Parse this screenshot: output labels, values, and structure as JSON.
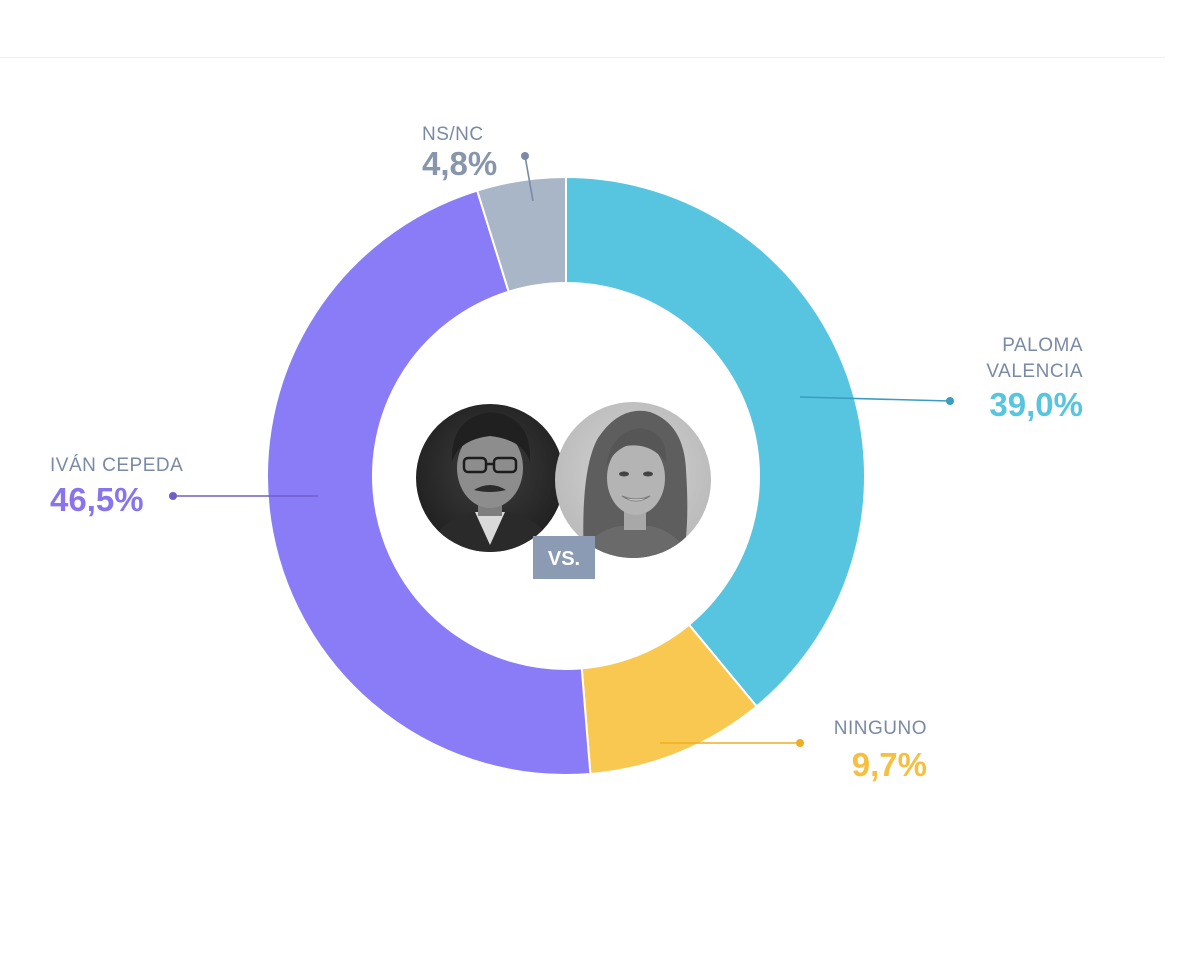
{
  "chart_data": {
    "type": "pie",
    "variant": "donut",
    "title": "",
    "start_angle_deg": 0,
    "direction": "clockwise",
    "slices": [
      {
        "key": "paloma",
        "label_lines": [
          "PALOMA",
          "VALENCIA"
        ],
        "value": 39.0,
        "display": "39,0%",
        "color": "#57c5e0",
        "value_color": "#57c5e0",
        "leader_color": "#3a9cc0"
      },
      {
        "key": "ninguno",
        "label_lines": [
          "NINGUNO"
        ],
        "value": 9.7,
        "display": "9,7%",
        "color": "#f9c850",
        "value_color": "#f6bf3f",
        "leader_color": "#f1ad22"
      },
      {
        "key": "ivan",
        "label_lines": [
          "IVÁN CEPEDA"
        ],
        "value": 46.5,
        "display": "46,5%",
        "color": "#8a7cf7",
        "value_color": "#8a74ee",
        "leader_color": "#6e5ec9"
      },
      {
        "key": "nsnc",
        "label_lines": [
          "NS/NC"
        ],
        "value": 4.8,
        "display": "4,8%",
        "color": "#a9b6c8",
        "value_color": "#8796ad",
        "leader_color": "#7a8aa4"
      }
    ]
  },
  "center": {
    "vs_label": "VS.",
    "vs_badge_color": "#8a9bb3",
    "photos": [
      {
        "key": "ivan",
        "name": "Iván Cepeda",
        "style": "grayscale portrait"
      },
      {
        "key": "paloma",
        "name": "Paloma Valencia",
        "style": "grayscale portrait"
      }
    ]
  }
}
